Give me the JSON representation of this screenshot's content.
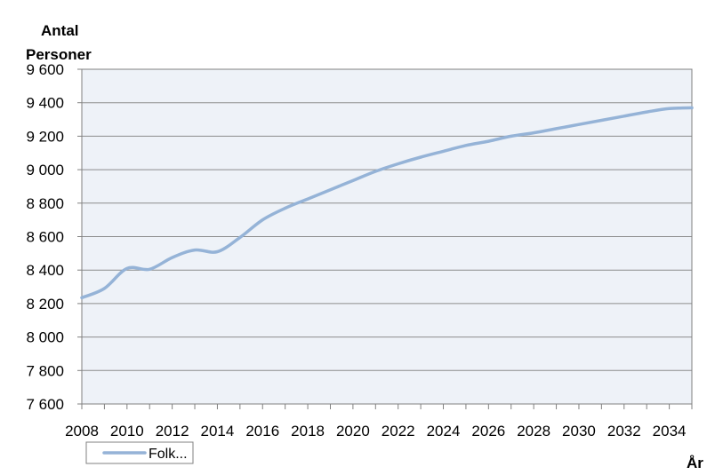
{
  "chart_data": {
    "type": "line",
    "ylabel": [
      "Antal",
      "Personer"
    ],
    "xlabel": "År",
    "ylim": [
      7600,
      9600
    ],
    "yticks": [
      7600,
      7800,
      8000,
      8200,
      8400,
      8600,
      8800,
      9000,
      9200,
      9400,
      9600
    ],
    "ytick_labels": [
      "7 600",
      "7 800",
      "8 000",
      "8 200",
      "8 400",
      "8 600",
      "8 800",
      "9 000",
      "9 200",
      "9 400",
      "9 600"
    ],
    "xlim": [
      2008,
      2035
    ],
    "xticks": [
      2008,
      2010,
      2012,
      2014,
      2016,
      2018,
      2020,
      2022,
      2024,
      2026,
      2028,
      2030,
      2032,
      2034
    ],
    "xtick_labels": [
      "2008",
      "2010",
      "2012",
      "2014",
      "2016",
      "2018",
      "2020",
      "2022",
      "2024",
      "2026",
      "2028",
      "2030",
      "2032",
      "2034"
    ],
    "grid": true,
    "legend_position": "bottom-left",
    "plot_background": "#EEF2F8",
    "series": [
      {
        "name": "Folk...",
        "color": "#95B3D7",
        "x": [
          2008,
          2009,
          2010,
          2011,
          2012,
          2013,
          2014,
          2015,
          2016,
          2017,
          2018,
          2019,
          2020,
          2021,
          2022,
          2023,
          2024,
          2025,
          2026,
          2027,
          2028,
          2029,
          2030,
          2031,
          2032,
          2033,
          2034,
          2035
        ],
        "values": [
          8235,
          8290,
          8410,
          8405,
          8475,
          8520,
          8510,
          8595,
          8700,
          8770,
          8825,
          8880,
          8935,
          8990,
          9035,
          9075,
          9110,
          9145,
          9170,
          9200,
          9220,
          9245,
          9270,
          9295,
          9320,
          9345,
          9365,
          9370
        ]
      }
    ]
  }
}
